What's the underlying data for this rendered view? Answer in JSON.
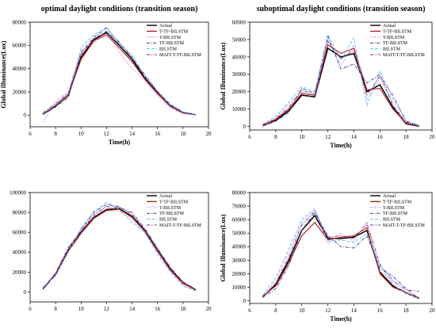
{
  "chart_data": [
    {
      "type": "line",
      "title": "optimal daylight conditions (transition season)",
      "xlabel": "Time(h)",
      "ylabel": "Global Illuminance(Lux)",
      "xlim": [
        6,
        20
      ],
      "ylim": [
        -10000,
        80000
      ],
      "xticks": [
        6,
        8,
        10,
        12,
        14,
        16,
        18,
        20
      ],
      "yticks": [
        0,
        20000,
        40000,
        60000,
        80000
      ],
      "x": [
        7,
        8,
        9,
        10,
        11,
        12,
        13,
        14,
        15,
        16,
        17,
        18,
        19
      ],
      "legend_position": "top-right",
      "series": [
        {
          "name": "Actual",
          "color": "#000000",
          "dash": "solid",
          "values": [
            800,
            8000,
            17000,
            50000,
            65000,
            71000,
            60000,
            48000,
            32000,
            19000,
            8000,
            2000,
            500
          ]
        },
        {
          "name": "T-TF-BILSTM",
          "color": "#b5271e",
          "dash": "solid",
          "values": [
            1000,
            8500,
            17500,
            48000,
            64000,
            69000,
            58000,
            46000,
            31000,
            18500,
            7500,
            1800,
            400
          ]
        },
        {
          "name": "T-BILSTM",
          "color": "#d060d0",
          "dash": "dot",
          "values": [
            -6000,
            12000,
            20000,
            55000,
            62000,
            73000,
            54000,
            40000,
            30000,
            17000,
            6000,
            1500,
            600
          ]
        },
        {
          "name": "TF-BILSTM",
          "color": "#283c8c",
          "dash": "dashdot",
          "values": [
            500,
            7000,
            15000,
            54000,
            67000,
            75000,
            62000,
            50000,
            33000,
            20000,
            9000,
            2500,
            300
          ]
        },
        {
          "name": "BILSTM",
          "color": "#58c8e8",
          "dash": "dash",
          "values": [
            1500,
            9000,
            18500,
            58000,
            69000,
            76000,
            61000,
            52000,
            34000,
            21000,
            10000,
            3000,
            800
          ]
        },
        {
          "name": "MAIT-T-TF-BILSTM",
          "color": "#7a2a9a",
          "dash": "dashdotdot",
          "values": [
            2000,
            10000,
            19000,
            52000,
            66000,
            72000,
            63000,
            49000,
            35000,
            20000,
            8500,
            2200,
            300
          ]
        }
      ]
    },
    {
      "type": "line",
      "title": "suboptimal daylight conditions (transition season)",
      "xlabel": "Time(h)",
      "ylabel": "Global Illuminance(Lux)",
      "xlim": [
        6,
        20
      ],
      "ylim": [
        -2000,
        60000
      ],
      "xticks": [
        6,
        8,
        10,
        12,
        14,
        16,
        18,
        20
      ],
      "yticks": [
        0,
        10000,
        20000,
        30000,
        40000,
        50000,
        60000
      ],
      "x": [
        7,
        8,
        9,
        10,
        11,
        12,
        13,
        14,
        15,
        16,
        17,
        18,
        19
      ],
      "legend_position": "top-right",
      "series": [
        {
          "name": "Actual",
          "color": "#000000",
          "dash": "solid",
          "values": [
            500,
            3500,
            9000,
            18000,
            17000,
            45000,
            40000,
            42000,
            20000,
            24000,
            11000,
            1500,
            200
          ]
        },
        {
          "name": "T-TF-BILSTM",
          "color": "#b5271e",
          "dash": "solid",
          "values": [
            800,
            4000,
            10000,
            19000,
            18000,
            47000,
            42000,
            45000,
            21000,
            22000,
            10000,
            2000,
            300
          ]
        },
        {
          "name": "T-BILSTM",
          "color": "#d060d0",
          "dash": "dot",
          "values": [
            -500,
            5000,
            13000,
            20000,
            16000,
            50000,
            35000,
            47000,
            15000,
            28000,
            14000,
            1500,
            500
          ]
        },
        {
          "name": "TF-BILSTM",
          "color": "#283c8c",
          "dash": "dashdot",
          "values": [
            300,
            3000,
            8000,
            22000,
            19000,
            52000,
            33000,
            36000,
            25000,
            30000,
            12000,
            2500,
            200
          ]
        },
        {
          "name": "BILSTM",
          "color": "#58c8e8",
          "dash": "dash",
          "values": [
            1000,
            6000,
            14000,
            23000,
            20000,
            53000,
            38000,
            51000,
            12000,
            32000,
            16000,
            3500,
            600
          ]
        },
        {
          "name": "MAIT-T-TF-BILSTM",
          "color": "#7a2a9a",
          "dash": "dashdotdot",
          "values": [
            1200,
            4500,
            11000,
            21000,
            18000,
            49000,
            39000,
            44000,
            18000,
            29000,
            18000,
            3000,
            400
          ]
        }
      ]
    },
    {
      "type": "line",
      "title": "",
      "xlabel": "",
      "ylabel": "",
      "xlim": [
        6,
        20
      ],
      "ylim": [
        -10000,
        100000
      ],
      "xticks": [
        6,
        8,
        10,
        12,
        14,
        16,
        18,
        20
      ],
      "yticks": [
        0,
        20000,
        40000,
        60000,
        80000,
        100000
      ],
      "x": [
        7,
        8,
        9,
        10,
        11,
        12,
        13,
        14,
        15,
        16,
        17,
        18,
        19
      ],
      "legend_position": "top-right",
      "series": [
        {
          "name": "Actual",
          "color": "#000000",
          "dash": "solid",
          "values": [
            3000,
            18000,
            42000,
            60000,
            75000,
            83000,
            84000,
            76000,
            62000,
            42000,
            23000,
            9000,
            2000
          ]
        },
        {
          "name": "T-TF-BILSTM",
          "color": "#b5271e",
          "dash": "solid",
          "values": [
            3500,
            18000,
            41000,
            59000,
            74000,
            82000,
            83000,
            75000,
            61000,
            41000,
            22000,
            8500,
            2000
          ]
        },
        {
          "name": "T-BILSTM",
          "color": "#d060d0",
          "dash": "dot",
          "values": [
            4000,
            19000,
            44000,
            62000,
            78000,
            86000,
            81000,
            73000,
            59000,
            40000,
            21000,
            7000,
            1500
          ]
        },
        {
          "name": "TF-BILSTM",
          "color": "#283c8c",
          "dash": "dashdot",
          "values": [
            2500,
            17000,
            43000,
            63000,
            80000,
            88000,
            86000,
            78000,
            63000,
            43000,
            24000,
            10000,
            2500
          ]
        },
        {
          "name": "BILSTM",
          "color": "#58c8e8",
          "dash": "dash",
          "values": [
            5000,
            16000,
            40000,
            64000,
            81000,
            90000,
            83000,
            70000,
            60000,
            38000,
            20000,
            6000,
            1000
          ]
        },
        {
          "name": "MAIT-T-TF-BILSTM",
          "color": "#7a2a9a",
          "dash": "dashdotdot",
          "values": [
            3000,
            19000,
            45000,
            61000,
            77000,
            86000,
            85000,
            80000,
            64000,
            44000,
            25000,
            10000,
            3000
          ]
        }
      ]
    },
    {
      "type": "line",
      "title": "",
      "xlabel": "Time(h)",
      "ylabel": "Global Illuminance(Lux)",
      "xlim": [
        6,
        20
      ],
      "ylim": [
        -2000,
        80000
      ],
      "xticks": [
        6,
        8,
        10,
        12,
        14,
        16,
        18,
        20
      ],
      "yticks": [
        0,
        10000,
        20000,
        30000,
        40000,
        50000,
        60000,
        70000,
        80000
      ],
      "x": [
        7,
        8,
        9,
        10,
        11,
        12,
        13,
        14,
        15,
        16,
        17,
        18,
        19
      ],
      "legend_position": "top-right",
      "series": [
        {
          "name": "Actual",
          "color": "#000000",
          "dash": "solid",
          "values": [
            3000,
            12000,
            30000,
            52000,
            63000,
            46000,
            46000,
            47000,
            52000,
            21000,
            11000,
            6000,
            2000
          ]
        },
        {
          "name": "T-TF-BILSTM",
          "color": "#b5271e",
          "dash": "solid",
          "values": [
            3500,
            11000,
            28000,
            48000,
            58000,
            45000,
            47000,
            48000,
            54000,
            20000,
            10000,
            6000,
            2000
          ]
        },
        {
          "name": "T-BILSTM",
          "color": "#d060d0",
          "dash": "dot",
          "values": [
            2000,
            15000,
            35000,
            58000,
            67000,
            42000,
            50000,
            44000,
            58000,
            22000,
            14000,
            6000,
            2500
          ]
        },
        {
          "name": "TF-BILSTM",
          "color": "#283c8c",
          "dash": "dashdot",
          "values": [
            2500,
            9000,
            26000,
            52000,
            65000,
            48000,
            40000,
            39000,
            48000,
            24000,
            18000,
            9000,
            1500
          ]
        },
        {
          "name": "BILSTM",
          "color": "#58c8e8",
          "dash": "dash",
          "values": [
            4000,
            17000,
            38000,
            60000,
            68000,
            44000,
            45000,
            43000,
            50000,
            26000,
            12000,
            5000,
            1200
          ]
        },
        {
          "name": "MAIT-T-TF-BILSTM",
          "color": "#7a2a9a",
          "dash": "dashdotdot",
          "values": [
            3000,
            13000,
            32000,
            56000,
            66000,
            47000,
            48000,
            46000,
            57000,
            27000,
            15000,
            8000,
            7000
          ]
        }
      ]
    }
  ]
}
